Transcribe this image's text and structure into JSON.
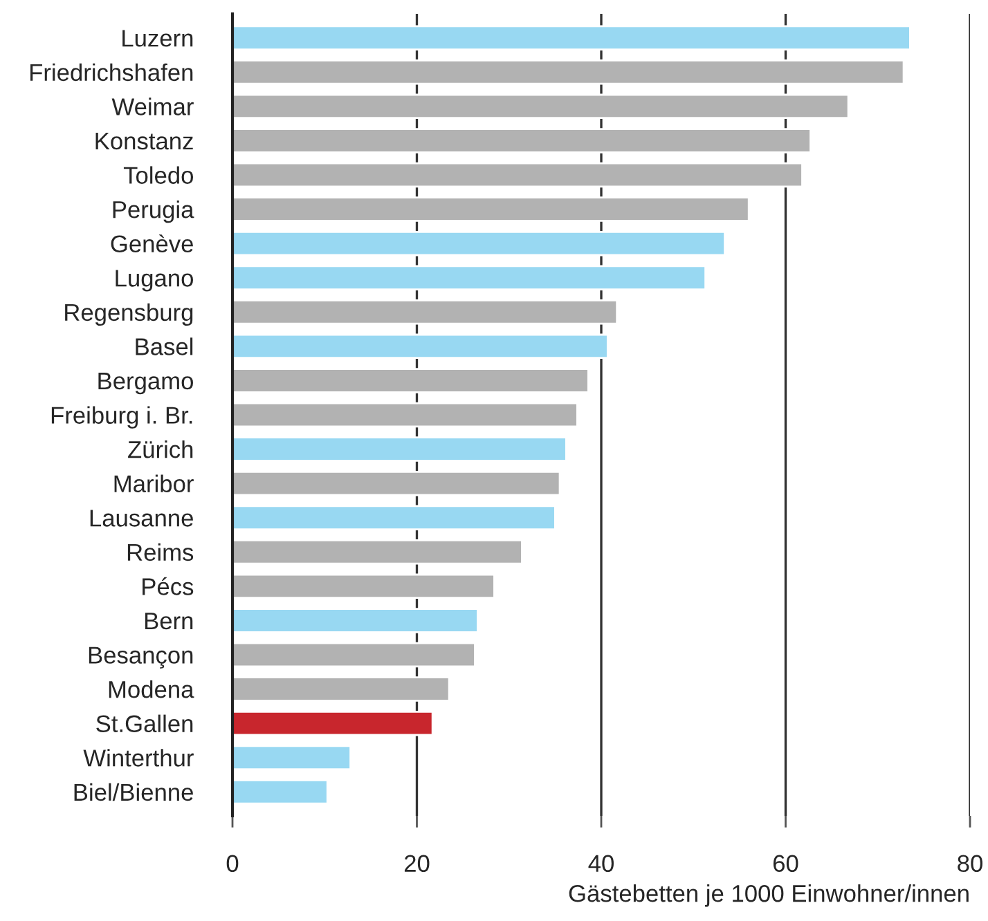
{
  "chart_data": {
    "type": "bar",
    "orientation": "horizontal",
    "xlabel": "Gästebetten je 1000 Einwohner/innen",
    "categories": [
      "Luzern",
      "Friedrichshafen",
      "Weimar",
      "Konstanz",
      "Toledo",
      "Perugia",
      "Genève",
      "Lugano",
      "Regensburg",
      "Basel",
      "Bergamo",
      "Freiburg i. Br.",
      "Zürich",
      "Maribor",
      "Lausanne",
      "Reims",
      "Pécs",
      "Bern",
      "Besançon",
      "Modena",
      "St.Gallen",
      "Winterthur",
      "Biel/Bienne"
    ],
    "values": [
      73.5,
      72.8,
      66.8,
      62.7,
      61.8,
      56.0,
      53.4,
      51.3,
      41.7,
      40.7,
      38.6,
      37.4,
      36.2,
      35.5,
      35.0,
      31.4,
      28.4,
      26.6,
      26.3,
      23.5,
      21.7,
      12.8,
      10.3
    ],
    "colors": [
      "#98d8f2",
      "#b2b2b2",
      "#b2b2b2",
      "#b2b2b2",
      "#b2b2b2",
      "#b2b2b2",
      "#98d8f2",
      "#98d8f2",
      "#b2b2b2",
      "#98d8f2",
      "#b2b2b2",
      "#b2b2b2",
      "#98d8f2",
      "#b2b2b2",
      "#98d8f2",
      "#b2b2b2",
      "#b2b2b2",
      "#98d8f2",
      "#b2b2b2",
      "#b2b2b2",
      "#c8262d",
      "#98d8f2",
      "#98d8f2"
    ],
    "xlim": [
      0,
      80
    ],
    "xticks": [
      0,
      20,
      40,
      60,
      80
    ],
    "grid": "x",
    "legend": false
  }
}
